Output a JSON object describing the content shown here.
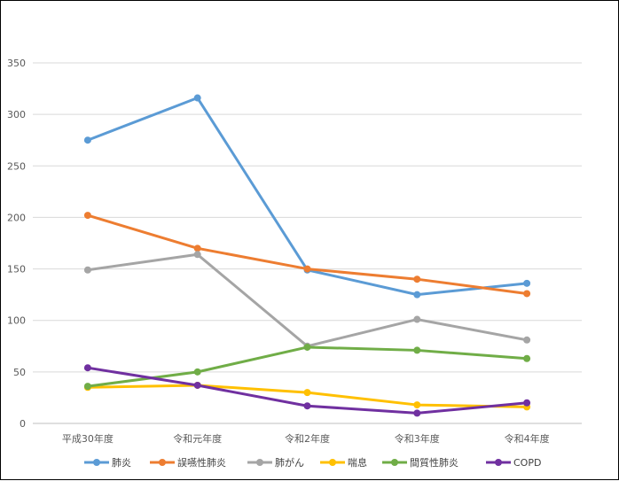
{
  "chart_data": {
    "type": "line",
    "categories": [
      "平成30年度",
      "令和元年度",
      "令和2年度",
      "令和3年度",
      "令和4年度"
    ],
    "ylim": [
      0,
      350
    ],
    "yticks": [
      "0",
      "50",
      "100",
      "150",
      "200",
      "250",
      "300",
      "350"
    ],
    "grid": true,
    "legend_position": "bottom",
    "series": [
      {
        "name": "肺炎",
        "color": "#5B9BD5",
        "values": [
          275,
          316,
          149,
          125,
          136
        ]
      },
      {
        "name": "誤嚥性肺炎",
        "color": "#ED7D31",
        "values": [
          202,
          170,
          150,
          140,
          126
        ]
      },
      {
        "name": "肺がん",
        "color": "#A5A5A5",
        "values": [
          149,
          164,
          75,
          101,
          81
        ]
      },
      {
        "name": "喘息",
        "color": "#FFC000",
        "values": [
          35,
          37,
          30,
          18,
          16
        ]
      },
      {
        "name": "間質性肺炎",
        "color": "#70AD47",
        "values": [
          36,
          50,
          74,
          71,
          63
        ]
      },
      {
        "name": "COPD",
        "color": "#7030A0",
        "values": [
          54,
          37,
          17,
          10,
          20
        ]
      }
    ]
  }
}
